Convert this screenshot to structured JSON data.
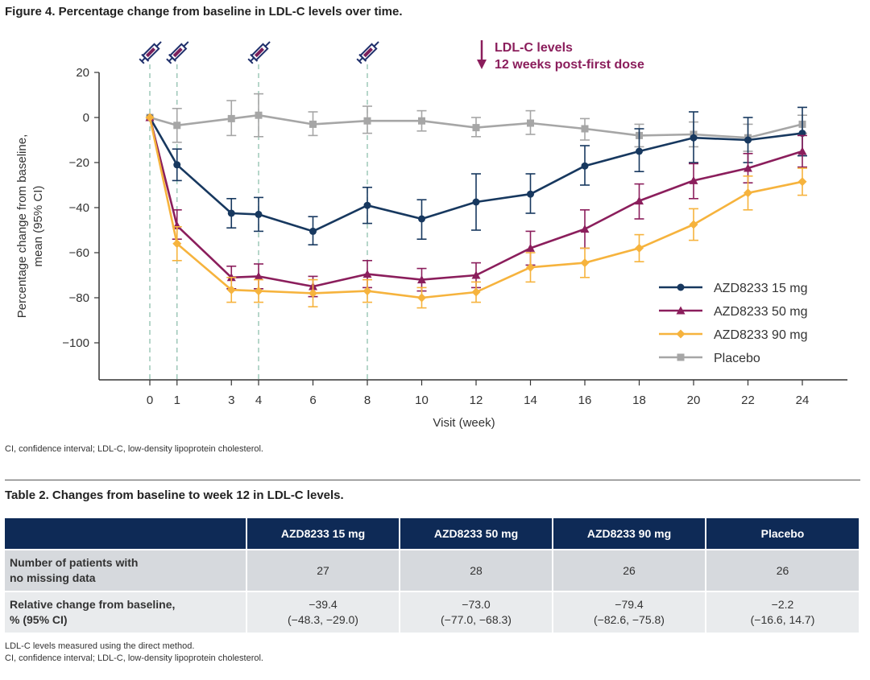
{
  "figure": {
    "title": "Figure 4. Percentage change from baseline in LDL-C levels over time.",
    "footnote": "CI, confidence interval; LDL-C, low-density lipoprotein cholesterol."
  },
  "chart_data": {
    "type": "line",
    "title": "Figure 4. Percentage change from baseline in LDL-C levels over time.",
    "xlabel": "Visit (week)",
    "ylabel_lines": [
      "Percentage change from baseline,",
      "mean (95% CI)"
    ],
    "ylim": [
      -115,
      20
    ],
    "xlim": [
      -1,
      25
    ],
    "y_ticks": [
      20,
      0,
      -20,
      -40,
      -60,
      -80,
      -100
    ],
    "y_tick_labels": [
      "20",
      "0",
      "−20",
      "−40",
      "−60",
      "−80",
      "−100"
    ],
    "x_ticks": [
      0,
      1,
      3,
      4,
      6,
      8,
      10,
      12,
      14,
      16,
      18,
      20,
      22,
      24
    ],
    "x_tick_labels": [
      "0",
      "1",
      "3",
      "4",
      "6",
      "8",
      "10",
      "12",
      "14",
      "16",
      "18",
      "20",
      "22",
      "24"
    ],
    "dose_weeks": [
      0,
      1,
      4,
      8
    ],
    "annotation": {
      "line1": "LDL-C levels",
      "line2": "12 weeks post-first dose",
      "color": "#8b1e5c"
    },
    "series": [
      {
        "name": "Placebo",
        "color": "#a6a6a6",
        "marker": "square",
        "x": [
          0,
          1,
          3,
          4,
          6,
          8,
          10,
          12,
          14,
          16,
          18,
          20,
          22,
          24
        ],
        "values": [
          0,
          -3.5,
          -0.5,
          1,
          -3,
          -1.5,
          -1.5,
          -4.5,
          -2.5,
          -5,
          -8,
          -7.5,
          -9,
          -3
        ],
        "lower": [
          0,
          -11,
          -8,
          -8.5,
          -8,
          -7,
          -6,
          -8.5,
          -7.5,
          -10,
          -13,
          -13,
          -15,
          -7
        ],
        "upper": [
          0,
          4,
          7.5,
          10.5,
          2.5,
          5,
          3,
          0,
          3,
          -0.5,
          -3,
          -2,
          -3,
          1
        ]
      },
      {
        "name": "AZD8233 15 mg",
        "color": "#17385f",
        "marker": "circle",
        "x": [
          0,
          1,
          3,
          4,
          6,
          8,
          10,
          12,
          14,
          16,
          18,
          20,
          22,
          24
        ],
        "values": [
          0,
          -21,
          -42.5,
          -43,
          -50.5,
          -39,
          -45,
          -37.5,
          -34,
          -21.5,
          -15,
          -9,
          -10,
          -7
        ],
        "lower": [
          0,
          -28,
          -49,
          -50.5,
          -56.5,
          -47,
          -54,
          -50,
          -42.5,
          -30,
          -24,
          -20,
          -20,
          -17
        ],
        "upper": [
          0,
          -14,
          -36,
          -35.5,
          -44,
          -31,
          -36.5,
          -25,
          -25,
          -12.5,
          -5,
          2.5,
          0,
          4.5
        ]
      },
      {
        "name": "AZD8233 50 mg",
        "color": "#8b1e5c",
        "marker": "triangle",
        "x": [
          0,
          1,
          3,
          4,
          6,
          8,
          10,
          12,
          14,
          16,
          18,
          20,
          22,
          24
        ],
        "values": [
          0,
          -48,
          -71,
          -70.5,
          -75,
          -69.5,
          -72,
          -70,
          -58,
          -49.5,
          -37,
          -28,
          -22.5,
          -15
        ],
        "lower": [
          0,
          -54,
          -76,
          -76,
          -79.5,
          -75.5,
          -77,
          -75.5,
          -65.5,
          -58,
          -45,
          -36,
          -29,
          -22
        ],
        "upper": [
          0,
          -41,
          -66,
          -65,
          -70.5,
          -63.5,
          -67,
          -64.5,
          -50.5,
          -41,
          -29.5,
          -20.5,
          -16,
          -8
        ]
      },
      {
        "name": "AZD8233 90 mg",
        "color": "#f6b33d",
        "marker": "diamond",
        "x": [
          0,
          1,
          3,
          4,
          6,
          8,
          10,
          12,
          14,
          16,
          18,
          20,
          22,
          24
        ],
        "values": [
          0,
          -56,
          -76.5,
          -77,
          -78,
          -77,
          -80,
          -77.5,
          -66.5,
          -64.5,
          -58,
          -47.5,
          -33.5,
          -28.5
        ],
        "lower": [
          0,
          -63.5,
          -82,
          -82,
          -84,
          -82,
          -84.5,
          -82,
          -73,
          -71,
          -64,
          -54.5,
          -41,
          -34.5
        ],
        "upper": [
          0,
          -48.5,
          -71,
          -72,
          -72,
          -72,
          -75.5,
          -73,
          -60,
          -58,
          -52,
          -40.5,
          -26,
          -22.5
        ]
      }
    ],
    "legend": {
      "position": "right",
      "order": [
        "AZD8233 15 mg",
        "AZD8233 50 mg",
        "AZD8233 90 mg",
        "Placebo"
      ]
    }
  },
  "table": {
    "title": "Table 2. Changes from baseline to week 12 in LDL-C levels.",
    "columns": [
      "",
      "AZD8233 15 mg",
      "AZD8233 50 mg",
      "AZD8233 90 mg",
      "Placebo"
    ],
    "rows": [
      {
        "label_line1": "Number of patients with",
        "label_line2": "no missing data",
        "cells": [
          {
            "line1": "27",
            "line2": ""
          },
          {
            "line1": "28",
            "line2": ""
          },
          {
            "line1": "26",
            "line2": ""
          },
          {
            "line1": "26",
            "line2": ""
          }
        ]
      },
      {
        "label_line1": "Relative change from baseline,",
        "label_line2": "% (95% CI)",
        "cells": [
          {
            "line1": "−39.4",
            "line2": "(−48.3, −29.0)"
          },
          {
            "line1": "−73.0",
            "line2": "(−77.0, −68.3)"
          },
          {
            "line1": "−79.4",
            "line2": "(−82.6, −75.8)"
          },
          {
            "line1": "−2.2",
            "line2": "(−16.6, 14.7)"
          }
        ]
      }
    ],
    "footnote1": "LDL-C levels measured using the direct method.",
    "footnote2": "CI, confidence interval; LDL-C, low-density lipoprotein cholesterol."
  }
}
